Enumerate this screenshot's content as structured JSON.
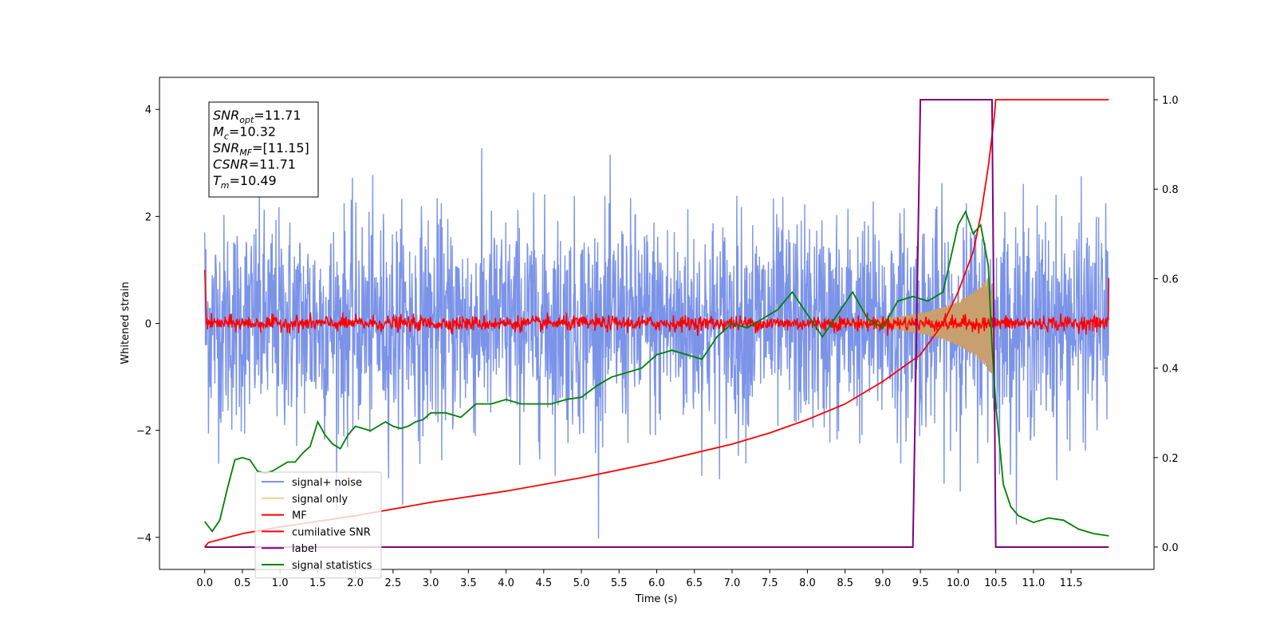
{
  "chart_data": {
    "type": "line",
    "xlabel": "Time (s)",
    "ylabel": "Whitened strain",
    "xlim": [
      -0.6,
      12.6
    ],
    "ylim": [
      -4.6,
      4.6
    ],
    "y2lim": [
      -0.05,
      1.05
    ],
    "x_ticks": [
      "0.0",
      "0.5",
      "1.0",
      "1.5",
      "2.0",
      "2.5",
      "3.0",
      "3.5",
      "4.0",
      "4.5",
      "5.0",
      "5.5",
      "6.0",
      "6.5",
      "7.0",
      "7.5",
      "8.0",
      "8.5",
      "9.0",
      "9.5",
      "10.0",
      "10.5",
      "11.0",
      "11.5"
    ],
    "y_ticks": [
      "-4",
      "-2",
      "0",
      "2",
      "4"
    ],
    "y2_ticks": [
      "0.0",
      "0.2",
      "0.4",
      "0.6",
      "0.8",
      "1.0"
    ],
    "annotation": {
      "lines": [
        {
          "base": "SNR",
          "sub": "opt",
          "rest": "=11.71"
        },
        {
          "base": "M",
          "sub": "c",
          "rest": "=10.32"
        },
        {
          "base": "SNR",
          "sub": "MF",
          "rest": "=[11.15]"
        },
        {
          "base": "CSNR",
          "sub": "",
          "rest": "=11.71"
        },
        {
          "base": "T",
          "sub": "m",
          "rest": "=10.49"
        }
      ]
    },
    "legend": {
      "position": "lower-left",
      "entries": [
        {
          "label": "signal+ noise",
          "color": "#7b93e8"
        },
        {
          "label": "signal only",
          "color": "#f5cf85"
        },
        {
          "label": "MF",
          "color": "#ff0000"
        },
        {
          "label": "cumilative SNR",
          "color": "#ff0000"
        },
        {
          "label": "label",
          "color": "#800080"
        },
        {
          "label": "signal statistics",
          "color": "#008000"
        }
      ]
    },
    "series": [
      {
        "name": "signal+ noise",
        "axis": "left",
        "color": "#7b93e8",
        "kind": "noise",
        "t_range": [
          0,
          12
        ],
        "sigma": 1.0,
        "n_points": 2400
      },
      {
        "name": "signal only",
        "axis": "left",
        "color": "#c8a070",
        "kind": "chirp",
        "t_start": 8.3,
        "t_end": 10.49,
        "envelope_t": [
          8.3,
          8.8,
          9.2,
          9.6,
          9.9,
          10.1,
          10.3,
          10.45,
          10.49
        ],
        "envelope_a": [
          0.02,
          0.06,
          0.12,
          0.22,
          0.35,
          0.5,
          0.7,
          0.95,
          0.0
        ]
      },
      {
        "name": "MF",
        "axis": "left",
        "color": "#ff0000",
        "kind": "mf_noise",
        "t_range": [
          0,
          12
        ],
        "sigma": 0.07,
        "n_points": 1600
      },
      {
        "name": "cumilative SNR",
        "axis": "right",
        "color": "#ff0000",
        "x": [
          0.0,
          0.05,
          0.5,
          1.0,
          2.0,
          3.0,
          4.0,
          5.0,
          6.0,
          7.0,
          7.5,
          8.0,
          8.5,
          9.0,
          9.5,
          9.8,
          10.0,
          10.2,
          10.3,
          10.4,
          10.48,
          10.5,
          12.0
        ],
        "y": [
          0.0,
          0.01,
          0.03,
          0.045,
          0.07,
          0.1,
          0.125,
          0.155,
          0.19,
          0.23,
          0.255,
          0.285,
          0.32,
          0.37,
          0.43,
          0.5,
          0.57,
          0.66,
          0.74,
          0.85,
          0.96,
          1.0,
          1.0
        ]
      },
      {
        "name": "label",
        "axis": "right",
        "color": "#800080",
        "x": [
          0.0,
          9.4,
          9.5,
          10.45,
          10.5,
          12.0
        ],
        "y": [
          0.0,
          0.0,
          1.0,
          1.0,
          0.0,
          0.0
        ]
      },
      {
        "name": "signal statistics",
        "axis": "right",
        "color": "#008000",
        "x": [
          0.0,
          0.1,
          0.2,
          0.3,
          0.4,
          0.5,
          0.6,
          0.7,
          0.8,
          0.9,
          1.0,
          1.1,
          1.2,
          1.3,
          1.4,
          1.5,
          1.6,
          1.7,
          1.8,
          1.9,
          2.0,
          2.1,
          2.2,
          2.3,
          2.4,
          2.5,
          2.6,
          2.7,
          2.8,
          2.9,
          3.0,
          3.2,
          3.4,
          3.6,
          3.8,
          4.0,
          4.2,
          4.4,
          4.6,
          4.8,
          5.0,
          5.2,
          5.4,
          5.6,
          5.8,
          6.0,
          6.2,
          6.4,
          6.6,
          6.8,
          7.0,
          7.2,
          7.4,
          7.6,
          7.8,
          8.0,
          8.2,
          8.4,
          8.6,
          8.8,
          9.0,
          9.2,
          9.4,
          9.6,
          9.8,
          10.0,
          10.1,
          10.2,
          10.3,
          10.4,
          10.45,
          10.5,
          10.6,
          10.7,
          10.8,
          11.0,
          11.2,
          11.4,
          11.6,
          11.8,
          12.0
        ],
        "y": [
          0.057,
          0.035,
          0.06,
          0.13,
          0.195,
          0.2,
          0.195,
          0.17,
          0.165,
          0.17,
          0.18,
          0.19,
          0.19,
          0.21,
          0.225,
          0.28,
          0.25,
          0.23,
          0.22,
          0.25,
          0.27,
          0.265,
          0.26,
          0.27,
          0.28,
          0.27,
          0.265,
          0.27,
          0.28,
          0.285,
          0.3,
          0.3,
          0.29,
          0.32,
          0.32,
          0.33,
          0.32,
          0.32,
          0.32,
          0.33,
          0.335,
          0.36,
          0.38,
          0.39,
          0.4,
          0.43,
          0.44,
          0.43,
          0.42,
          0.47,
          0.5,
          0.49,
          0.51,
          0.53,
          0.57,
          0.52,
          0.47,
          0.52,
          0.57,
          0.51,
          0.49,
          0.55,
          0.56,
          0.55,
          0.57,
          0.72,
          0.75,
          0.7,
          0.72,
          0.63,
          0.45,
          0.32,
          0.14,
          0.09,
          0.07,
          0.055,
          0.065,
          0.06,
          0.04,
          0.03,
          0.025
        ]
      }
    ]
  }
}
